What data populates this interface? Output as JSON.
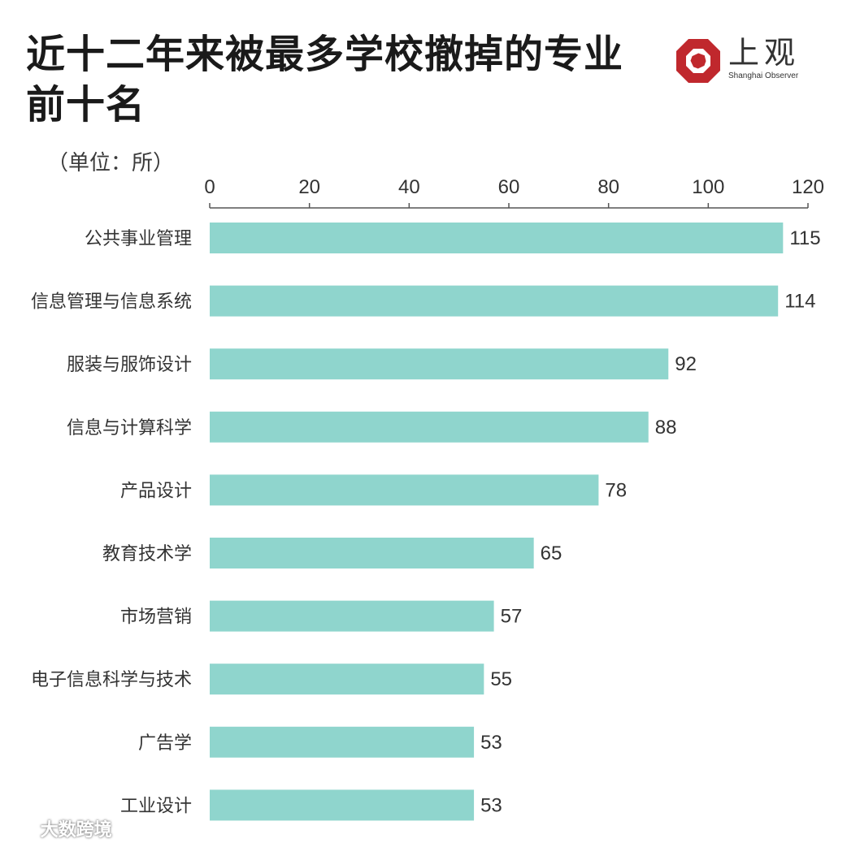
{
  "header": {
    "title_line1": "近十二年来被最多学校撤掉的专业",
    "title_line2": "前十名",
    "unit": "（单位：所）"
  },
  "logo": {
    "name_cn": "上观",
    "name_en": "Shanghai Observer",
    "icon": "octagon-logo-icon",
    "color": "#c0282d"
  },
  "watermark": {
    "text": "大数跨境",
    "icon": "chat-bubble-icon"
  },
  "colors": {
    "bar": "#8fd5cd",
    "axis": "#555555",
    "text": "#333333"
  },
  "chart_data": {
    "type": "bar",
    "orientation": "horizontal",
    "categories": [
      "公共事业管理",
      "信息管理与信息系统",
      "服装与服饰设计",
      "信息与计算科学",
      "产品设计",
      "教育技术学",
      "市场营销",
      "电子信息科学与技术",
      "广告学",
      "工业设计"
    ],
    "values": [
      115,
      114,
      92,
      88,
      78,
      65,
      57,
      55,
      53,
      53
    ],
    "xlim": [
      0,
      120
    ],
    "xticks": [
      0,
      20,
      40,
      60,
      80,
      100,
      120
    ],
    "axis_position": "top",
    "data_labels": true,
    "grid": false
  }
}
